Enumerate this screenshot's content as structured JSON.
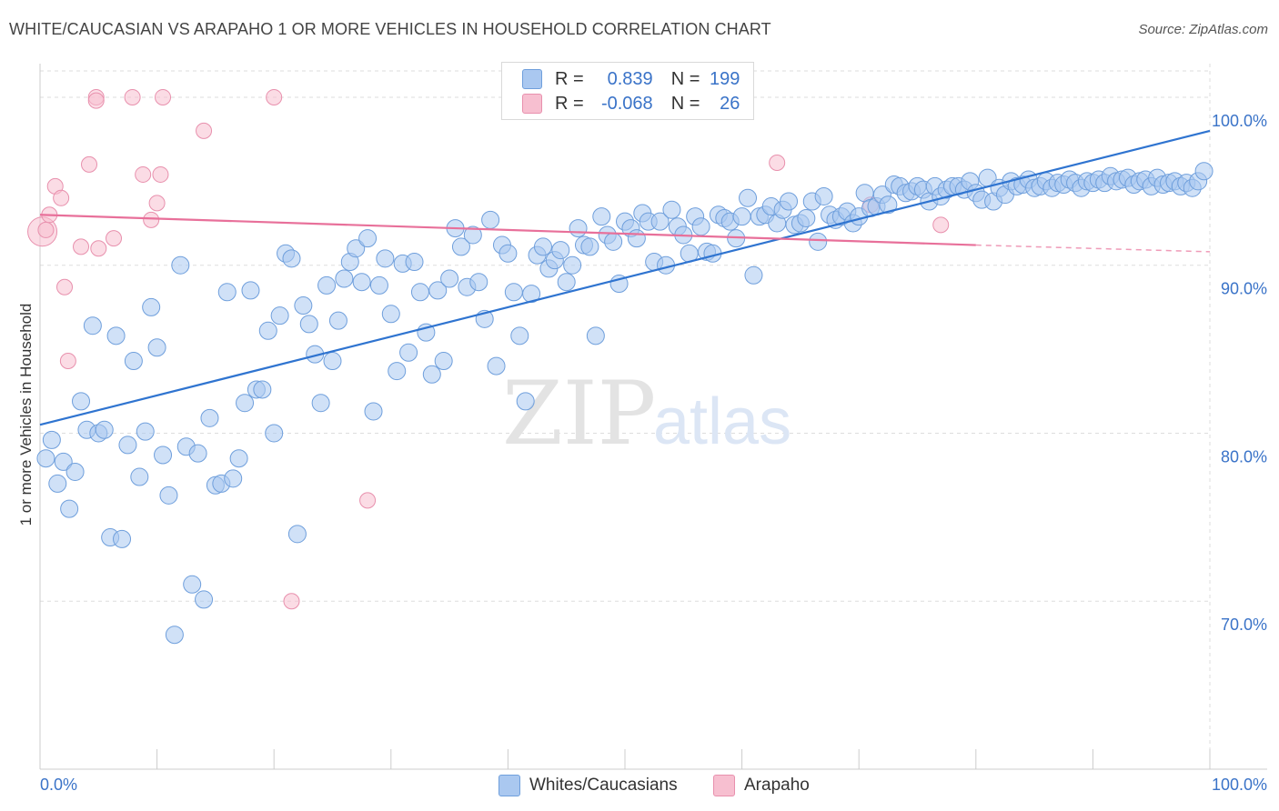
{
  "title": "WHITE/CAUCASIAN VS ARAPAHO 1 OR MORE VEHICLES IN HOUSEHOLD CORRELATION CHART",
  "source": "Source: ZipAtlas.com",
  "watermark": {
    "zip": "ZIP",
    "atlas": "atlas"
  },
  "legend": {
    "rows": [
      {
        "r_label": "R =",
        "r_value": "0.839",
        "n_label": "N =",
        "n_value": "199"
      },
      {
        "r_label": "R =",
        "r_value": "-0.068",
        "n_label": "N =",
        "n_value": "26"
      }
    ]
  },
  "bottom_legend": {
    "series1": "Whites/Caucasians",
    "series2": "Arapaho"
  },
  "colors": {
    "blue_fill": "#aac8f0",
    "blue_stroke": "#6f9fdc",
    "blue_line": "#2f74d0",
    "pink_fill": "#f7bfd0",
    "pink_stroke": "#e890ad",
    "pink_line": "#e8709a",
    "axis_text": "#3a73c8",
    "grid": "#dddddd"
  },
  "chart_data": {
    "type": "scatter",
    "title": "WHITE/CAUCASIAN VS ARAPAHO 1 OR MORE VEHICLES IN HOUSEHOLD CORRELATION CHART",
    "xlabel": "",
    "ylabel": "1 or more Vehicles in Household",
    "xlim": [
      0,
      100
    ],
    "ylim": [
      60,
      102
    ],
    "x_tick_labels": [
      "0.0%",
      "100.0%"
    ],
    "y_ticks": [
      70,
      80,
      90,
      100
    ],
    "y_tick_labels": [
      "70.0%",
      "80.0%",
      "90.0%",
      "100.0%"
    ],
    "grid": true,
    "legend_position": "top-center",
    "series": [
      {
        "name": "Whites/Caucasians",
        "r": 0.839,
        "n": 199,
        "trend": {
          "x": [
            0,
            100
          ],
          "y": [
            80.5,
            98.0
          ]
        },
        "points": [
          [
            0.5,
            78.5
          ],
          [
            1,
            79.6
          ],
          [
            1.5,
            77.0
          ],
          [
            2,
            78.3
          ],
          [
            2.5,
            75.5
          ],
          [
            3,
            77.7
          ],
          [
            3.5,
            81.9
          ],
          [
            4,
            80.2
          ],
          [
            4.5,
            86.4
          ],
          [
            5,
            80.0
          ],
          [
            5.5,
            80.2
          ],
          [
            6,
            73.8
          ],
          [
            6.5,
            85.8
          ],
          [
            7,
            73.7
          ],
          [
            7.5,
            79.3
          ],
          [
            8,
            84.3
          ],
          [
            8.5,
            77.4
          ],
          [
            9,
            80.1
          ],
          [
            9.5,
            87.5
          ],
          [
            10,
            85.1
          ],
          [
            10.5,
            78.7
          ],
          [
            11,
            76.3
          ],
          [
            11.5,
            68.0
          ],
          [
            12,
            90.0
          ],
          [
            12.5,
            79.2
          ],
          [
            13,
            71.0
          ],
          [
            13.5,
            78.8
          ],
          [
            14,
            70.1
          ],
          [
            14.5,
            80.9
          ],
          [
            15,
            76.9
          ],
          [
            15.5,
            77.0
          ],
          [
            16,
            88.4
          ],
          [
            16.5,
            77.3
          ],
          [
            17,
            78.5
          ],
          [
            17.5,
            81.8
          ],
          [
            18,
            88.5
          ],
          [
            18.5,
            82.6
          ],
          [
            19,
            82.6
          ],
          [
            19.5,
            86.1
          ],
          [
            20,
            80.0
          ],
          [
            20.5,
            87.0
          ],
          [
            21,
            90.7
          ],
          [
            21.5,
            90.4
          ],
          [
            22,
            74.0
          ],
          [
            22.5,
            87.6
          ],
          [
            23,
            86.5
          ],
          [
            23.5,
            84.7
          ],
          [
            24,
            81.8
          ],
          [
            24.5,
            88.8
          ],
          [
            25,
            84.3
          ],
          [
            25.5,
            86.7
          ],
          [
            26,
            89.2
          ],
          [
            26.5,
            90.2
          ],
          [
            27,
            91.0
          ],
          [
            27.5,
            89.0
          ],
          [
            28,
            91.6
          ],
          [
            28.5,
            81.3
          ],
          [
            29,
            88.8
          ],
          [
            29.5,
            90.4
          ],
          [
            30,
            87.1
          ],
          [
            30.5,
            83.7
          ],
          [
            31,
            90.1
          ],
          [
            31.5,
            84.8
          ],
          [
            32,
            90.2
          ],
          [
            32.5,
            88.4
          ],
          [
            33,
            86.0
          ],
          [
            33.5,
            83.5
          ],
          [
            34,
            88.5
          ],
          [
            34.5,
            84.3
          ],
          [
            35,
            89.2
          ],
          [
            35.5,
            92.2
          ],
          [
            36,
            91.1
          ],
          [
            36.5,
            88.7
          ],
          [
            37,
            91.8
          ],
          [
            37.5,
            89.0
          ],
          [
            38,
            86.8
          ],
          [
            38.5,
            92.7
          ],
          [
            39,
            84.0
          ],
          [
            39.5,
            91.2
          ],
          [
            40,
            90.7
          ],
          [
            40.5,
            88.4
          ],
          [
            41,
            85.8
          ],
          [
            41.5,
            81.9
          ],
          [
            42,
            88.3
          ],
          [
            42.5,
            90.6
          ],
          [
            43,
            91.1
          ],
          [
            43.5,
            89.8
          ],
          [
            44,
            90.3
          ],
          [
            44.5,
            90.9
          ],
          [
            45,
            89.0
          ],
          [
            45.5,
            90.0
          ],
          [
            46,
            92.2
          ],
          [
            46.5,
            91.2
          ],
          [
            47,
            91.1
          ],
          [
            47.5,
            85.8
          ],
          [
            48,
            92.9
          ],
          [
            48.5,
            91.8
          ],
          [
            49,
            91.4
          ],
          [
            49.5,
            88.9
          ],
          [
            50,
            92.6
          ],
          [
            50.5,
            92.2
          ],
          [
            51,
            91.6
          ],
          [
            51.5,
            93.1
          ],
          [
            52,
            92.6
          ],
          [
            52.5,
            90.2
          ],
          [
            53,
            92.6
          ],
          [
            53.5,
            90.0
          ],
          [
            54,
            93.3
          ],
          [
            54.5,
            92.3
          ],
          [
            55,
            91.8
          ],
          [
            55.5,
            90.7
          ],
          [
            56,
            92.9
          ],
          [
            56.5,
            92.3
          ],
          [
            57,
            90.8
          ],
          [
            57.5,
            90.7
          ],
          [
            58,
            93.0
          ],
          [
            58.5,
            92.8
          ],
          [
            59,
            92.6
          ],
          [
            59.5,
            91.6
          ],
          [
            60,
            92.9
          ],
          [
            60.5,
            94.0
          ],
          [
            61,
            89.4
          ],
          [
            61.5,
            92.9
          ],
          [
            62,
            93.0
          ],
          [
            62.5,
            93.5
          ],
          [
            63,
            92.5
          ],
          [
            63.5,
            93.3
          ],
          [
            64,
            93.8
          ],
          [
            64.5,
            92.4
          ],
          [
            65,
            92.5
          ],
          [
            65.5,
            92.8
          ],
          [
            66,
            93.8
          ],
          [
            66.5,
            91.4
          ],
          [
            67,
            94.1
          ],
          [
            67.5,
            93.0
          ],
          [
            68,
            92.7
          ],
          [
            68.5,
            92.9
          ],
          [
            69,
            93.2
          ],
          [
            69.5,
            92.5
          ],
          [
            70,
            92.9
          ],
          [
            70.5,
            94.3
          ],
          [
            71,
            93.4
          ],
          [
            71.5,
            93.5
          ],
          [
            72,
            94.2
          ],
          [
            72.5,
            93.6
          ],
          [
            73,
            94.8
          ],
          [
            73.5,
            94.7
          ],
          [
            74,
            94.3
          ],
          [
            74.5,
            94.4
          ],
          [
            75,
            94.7
          ],
          [
            75.5,
            94.5
          ],
          [
            76,
            93.8
          ],
          [
            76.5,
            94.7
          ],
          [
            77,
            94.1
          ],
          [
            77.5,
            94.5
          ],
          [
            78,
            94.7
          ],
          [
            78.5,
            94.7
          ],
          [
            79,
            94.5
          ],
          [
            79.5,
            95.0
          ],
          [
            80,
            94.3
          ],
          [
            80.5,
            93.9
          ],
          [
            81,
            95.2
          ],
          [
            81.5,
            93.8
          ],
          [
            82,
            94.6
          ],
          [
            82.5,
            94.2
          ],
          [
            83,
            95.0
          ],
          [
            83.5,
            94.7
          ],
          [
            84,
            94.8
          ],
          [
            84.5,
            95.1
          ],
          [
            85,
            94.6
          ],
          [
            85.5,
            94.7
          ],
          [
            86,
            95.0
          ],
          [
            86.5,
            94.6
          ],
          [
            87,
            94.9
          ],
          [
            87.5,
            94.8
          ],
          [
            88,
            95.1
          ],
          [
            88.5,
            94.9
          ],
          [
            89,
            94.6
          ],
          [
            89.5,
            95.0
          ],
          [
            90,
            94.9
          ],
          [
            90.5,
            95.1
          ],
          [
            91,
            94.9
          ],
          [
            91.5,
            95.3
          ],
          [
            92,
            95.0
          ],
          [
            92.5,
            95.1
          ],
          [
            93,
            95.2
          ],
          [
            93.5,
            94.8
          ],
          [
            94,
            95.0
          ],
          [
            94.5,
            95.1
          ],
          [
            95,
            94.7
          ],
          [
            95.5,
            95.2
          ],
          [
            96,
            94.8
          ],
          [
            96.5,
            94.9
          ],
          [
            97,
            95.0
          ],
          [
            97.5,
            94.7
          ],
          [
            98,
            94.9
          ],
          [
            98.5,
            94.6
          ],
          [
            99,
            95.0
          ],
          [
            99.5,
            95.6
          ]
        ]
      },
      {
        "name": "Arapaho",
        "r": -0.068,
        "n": 26,
        "trend": {
          "x": [
            0,
            80
          ],
          "y": [
            93.0,
            91.2
          ]
        },
        "trend_dashed": {
          "x": [
            80,
            100
          ],
          "y": [
            91.2,
            90.8
          ]
        },
        "points": [
          [
            0.2,
            92.0
          ],
          [
            0.5,
            92.1
          ],
          [
            0.8,
            93.0
          ],
          [
            1.3,
            94.7
          ],
          [
            1.8,
            94.0
          ],
          [
            2.1,
            88.7
          ],
          [
            2.4,
            84.3
          ],
          [
            3.5,
            91.1
          ],
          [
            4.2,
            96.0
          ],
          [
            4.8,
            100.0
          ],
          [
            4.8,
            99.8
          ],
          [
            5.0,
            91.0
          ],
          [
            6.3,
            91.6
          ],
          [
            7.9,
            100.0
          ],
          [
            8.8,
            95.4
          ],
          [
            9.5,
            92.7
          ],
          [
            10.0,
            93.7
          ],
          [
            10.3,
            95.4
          ],
          [
            10.5,
            100.0
          ],
          [
            14.0,
            98.0
          ],
          [
            20.0,
            100.0
          ],
          [
            21.5,
            70.0
          ],
          [
            28.0,
            76.0
          ],
          [
            63.0,
            96.1
          ],
          [
            71.0,
            93.6
          ],
          [
            77.0,
            92.4
          ]
        ]
      }
    ]
  }
}
